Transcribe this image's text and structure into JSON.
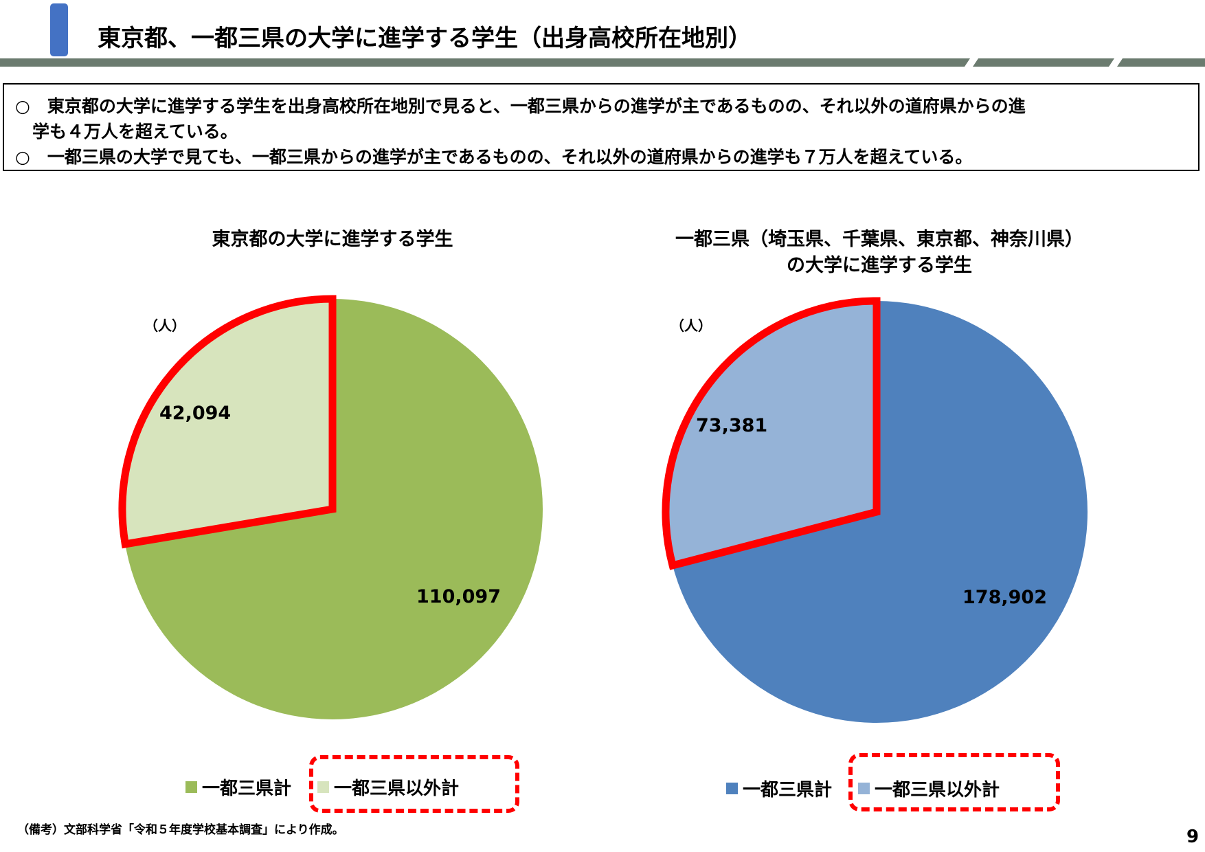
{
  "header": {
    "title": "東京都、一都三県の大学に進学する学生（出身高校所在地別）",
    "accent_color": "#4472c4",
    "rule_color": "#6b7b6f"
  },
  "summary": {
    "lines": [
      "○　東京都の大学に進学する学生を出身高校所在地別で見ると、一都三県からの進学が主であるものの、それ以外の道府県からの進",
      "　学も４万人を超えている。",
      "○　一都三県の大学で見ても、一都三県からの進学が主であるものの、それ以外の道府県からの進学も７万人を超えている。"
    ]
  },
  "chart_data": [
    {
      "type": "pie",
      "title": "東京都の大学に進学する学生",
      "unit": "（人）",
      "categories": [
        "一都三県計",
        "一都三県以外計"
      ],
      "values": [
        110097,
        42094
      ],
      "value_labels": [
        "110,097",
        "42,094"
      ],
      "colors": [
        "#9bbb59",
        "#d7e4bd"
      ],
      "highlighted_category": "一都三県以外計",
      "highlight_color": "#ff0000",
      "legend_position": "bottom"
    },
    {
      "type": "pie",
      "title": "一都三県（埼玉県、千葉県、東京都、神奈川県）の大学に進学する学生",
      "title_lines": [
        "一都三県（埼玉県、千葉県、東京都、神奈川県）",
        "の大学に進学する学生"
      ],
      "unit": "（人）",
      "categories": [
        "一都三県計",
        "一都三県以外計"
      ],
      "values": [
        178902,
        73381
      ],
      "value_labels": [
        "178,902",
        "73,381"
      ],
      "colors": [
        "#4f81bd",
        "#95b3d7"
      ],
      "highlighted_category": "一都三県以外計",
      "highlight_color": "#ff0000",
      "legend_position": "bottom"
    }
  ],
  "footer": {
    "note": "（備考）文部科学省「令和５年度学校基本調査」により作成。",
    "page_number": "9"
  }
}
